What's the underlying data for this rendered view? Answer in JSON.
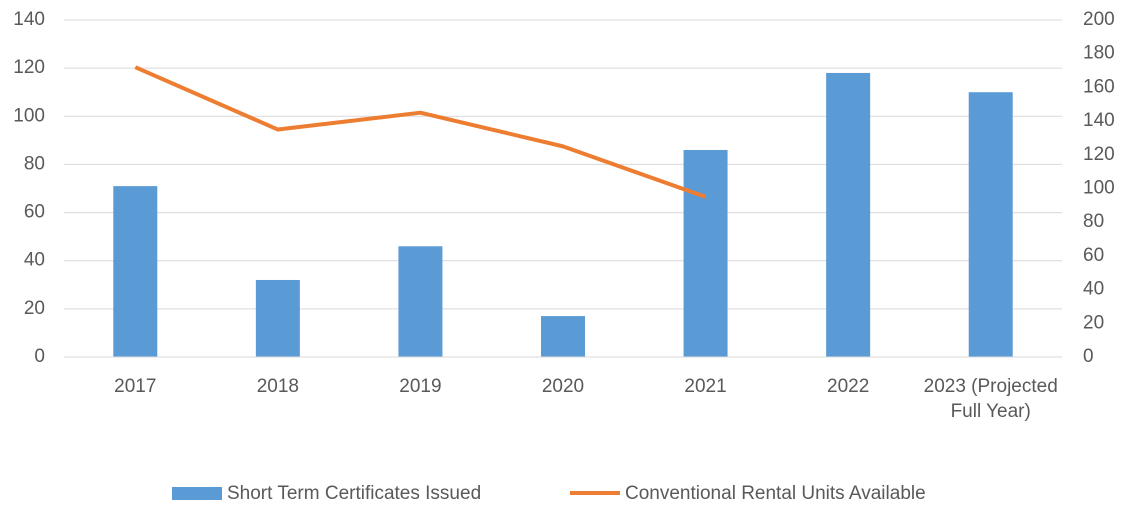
{
  "chart_data": {
    "type": "bar_line",
    "categories": [
      "2017",
      "2018",
      "2019",
      "2020",
      "2021",
      "2022",
      "2023 (Projected Full Year)"
    ],
    "series": [
      {
        "name": "Short Term Certificates Issued",
        "type": "bar",
        "color": "#5b9bd5",
        "values": [
          71,
          32,
          46,
          17,
          86,
          118,
          110
        ]
      },
      {
        "name": "Conventional Rental Units Available",
        "type": "line",
        "axis": "y2",
        "color": "#ed7d31",
        "values": [
          172,
          135,
          145,
          125,
          95,
          null,
          null
        ]
      }
    ],
    "ylim": [
      0,
      140
    ],
    "yticks": [
      0,
      20,
      40,
      60,
      80,
      100,
      120,
      140
    ],
    "y2lim": [
      0,
      200
    ],
    "y2ticks": [
      0,
      20,
      40,
      60,
      80,
      100,
      120,
      140,
      160,
      180,
      200
    ],
    "grid": true,
    "legend": "bottom"
  }
}
